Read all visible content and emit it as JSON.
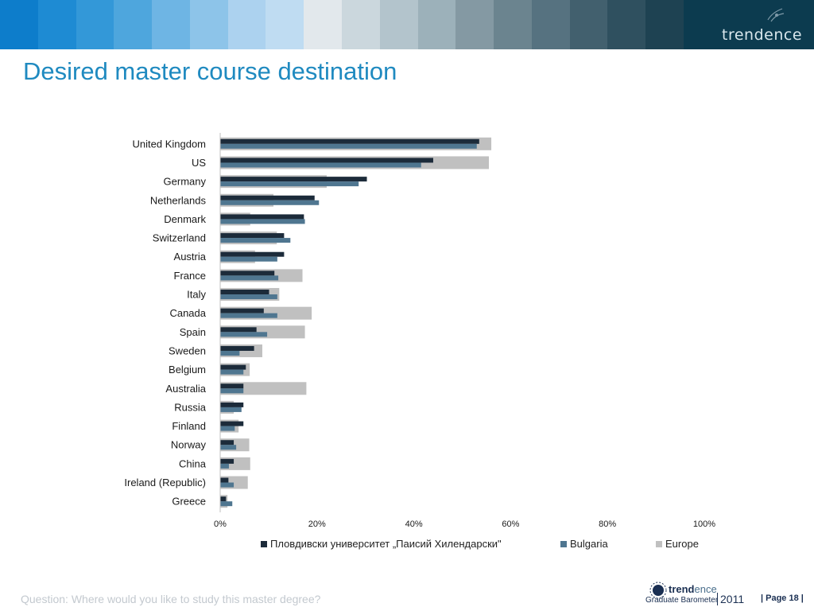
{
  "header": {
    "brand": "trendence",
    "stripe_colors": [
      "#0d7dcb",
      "#1e8bd3",
      "#3398d8",
      "#4ea6dd",
      "#6eb5e4",
      "#8dc4e9",
      "#acd2ef",
      "#bfdcf2",
      "#e2e8ec",
      "#cbd7dd",
      "#b3c4cc",
      "#9cb1ba",
      "#8499a3",
      "#6b848f",
      "#567280",
      "#42606e",
      "#2f505f",
      "#1e4252"
    ]
  },
  "page": {
    "title": "Desired master course destination",
    "question": "Question: Where would you like to study this master degree?"
  },
  "footer": {
    "logo_bold": "trend",
    "logo_rest": "ence",
    "logo_sub": "Graduate Barometer",
    "year": "2011",
    "page_label": "| Page 18 |"
  },
  "chart_data": {
    "type": "bar",
    "orientation": "horizontal",
    "categories": [
      "United Kingdom",
      "US",
      "Germany",
      "Netherlands",
      "Denmark",
      "Switzerland",
      "Austria",
      "France",
      "Italy",
      "Canada",
      "Spain",
      "Sweden",
      "Belgium",
      "Australia",
      "Russia",
      "Finland",
      "Norway",
      "China",
      "Ireland (Republic)",
      "Greece"
    ],
    "series": [
      {
        "name": "Пловдивски университет „Паисий Хилендарски\"",
        "color": "#1c2b3a",
        "values": [
          53.5,
          44,
          30.3,
          19.5,
          17.3,
          13.2,
          13.2,
          11.2,
          10.1,
          9,
          7.5,
          7,
          5.3,
          4.8,
          4.8,
          4.8,
          2.8,
          2.8,
          1.7,
          1.2
        ]
      },
      {
        "name": "Bulgaria",
        "color": "#4f7690",
        "values": [
          53,
          41.5,
          28.6,
          20.4,
          17.5,
          14.5,
          11.8,
          12,
          11.8,
          11.8,
          9.7,
          4,
          4.8,
          4.8,
          4.4,
          3,
          3.3,
          1.8,
          2.8,
          2.5
        ]
      },
      {
        "name": "Europe",
        "color": "#c0c0c0",
        "values": [
          56,
          55.5,
          22,
          11,
          6.2,
          11.7,
          7.2,
          17,
          12.2,
          18.9,
          17.5,
          8.7,
          6.1,
          17.8,
          2.8,
          3.8,
          6,
          6.2,
          5.7,
          1.5
        ]
      }
    ],
    "xlim": [
      0,
      100
    ],
    "x_ticks": [
      "0%",
      "20%",
      "40%",
      "60%",
      "80%",
      "100%"
    ],
    "legend_position": "bottom",
    "grid": false
  }
}
